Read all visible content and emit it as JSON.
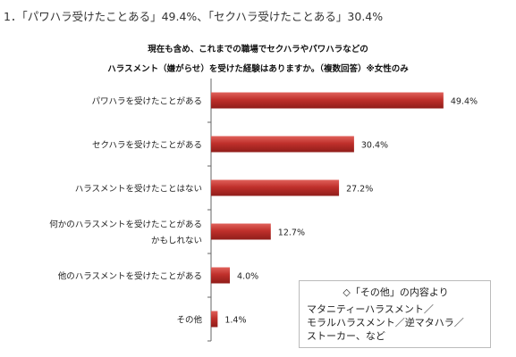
{
  "headline": "1．「パワハラ受けたことある」49.4%、「セクハラ受けたことある」30.4%",
  "chart_data": {
    "type": "bar",
    "orientation": "horizontal",
    "title": [
      "現在も含め、これまでの職場でセクハラやパワハラなどの",
      "ハラスメント（嫌がらせ）を受けた経験はありますか。（複数回答）※女性のみ"
    ],
    "categories": [
      [
        "パワハラを受けたことがある"
      ],
      [
        "セクハラを受けたことがある"
      ],
      [
        "ハラスメントを受けたことはない"
      ],
      [
        "何かのハラスメントを受けたことがある",
        "かもしれない"
      ],
      [
        "他のハラスメントを受けたことがある"
      ],
      [
        "その他"
      ]
    ],
    "values": [
      49.4,
      30.4,
      27.2,
      12.7,
      4.0,
      1.4
    ],
    "value_labels": [
      "49.4%",
      "30.4%",
      "27.2%",
      "12.7%",
      "4.0%",
      "1.4%"
    ],
    "xlim": [
      0,
      50
    ],
    "bar_color": "#c0302b",
    "grid": false
  },
  "note": {
    "heading": "◇「その他」の内容より",
    "lines": [
      "マタニティーハラスメント／",
      "モラルハラスメント／逆マタハラ／",
      "ストーカー、など"
    ]
  }
}
